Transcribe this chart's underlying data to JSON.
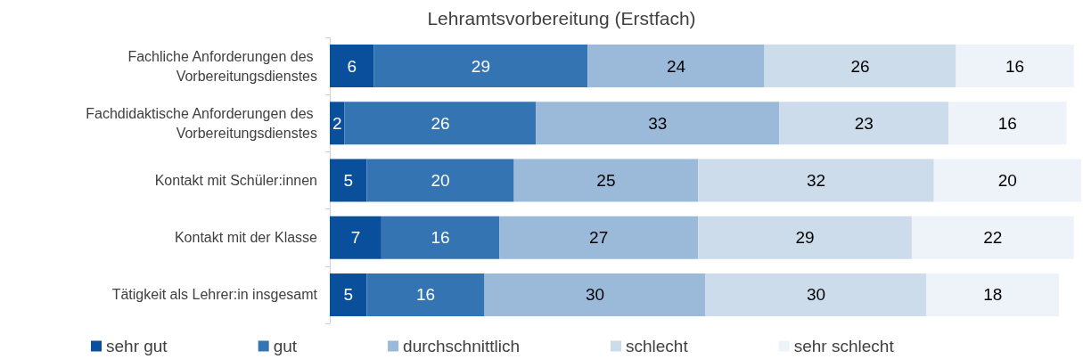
{
  "chart_data": {
    "type": "bar",
    "title": "Lehramtsvorbereitung (Erstfach)",
    "orientation": "horizontal",
    "stacked": true,
    "data_labels": true,
    "legend": "bottom",
    "categories": [
      "Fachliche Anforderungen des Vorbereitungsdienstes",
      "Fachdidaktische Anforderungen des Vorbereitungsdienstes",
      "Kontakt mit Schüler:innen",
      "Kontakt mit der Klasse",
      "Tätigkeit als Lehrer:in insgesamt"
    ],
    "series": [
      {
        "name": "sehr gut",
        "color": "#0a4f9b",
        "values": [
          6,
          2,
          5,
          7,
          5
        ]
      },
      {
        "name": "gut",
        "color": "#3474b3",
        "values": [
          29,
          26,
          20,
          16,
          16
        ]
      },
      {
        "name": "durchschnittlich",
        "color": "#9bbad9",
        "values": [
          24,
          33,
          25,
          27,
          30
        ]
      },
      {
        "name": "schlecht",
        "color": "#cddcea",
        "values": [
          26,
          23,
          32,
          29,
          30
        ]
      },
      {
        "name": "sehr schlecht",
        "color": "#eef3f9",
        "values": [
          16,
          16,
          20,
          22,
          18
        ]
      }
    ]
  }
}
